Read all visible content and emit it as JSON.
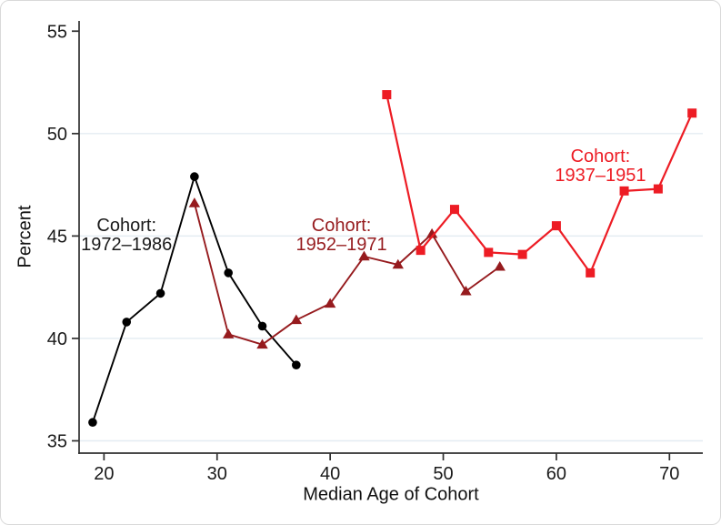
{
  "colors": {
    "axis": "#303030",
    "gridline": "#e4ecf2",
    "tick_label": "#1a1a1a",
    "border": "#d9d9d9",
    "background": "#ffffff",
    "series_black": "#000000",
    "series_darkred": "#961b1e",
    "series_red": "#ed1c24"
  },
  "chart_data": {
    "type": "line",
    "title": "",
    "xlabel": "Median Age of Cohort",
    "ylabel": "Percent",
    "xlim": [
      17.8,
      72.95
    ],
    "ylim": [
      34.4,
      55.5
    ],
    "x_ticks": [
      "20",
      "30",
      "40",
      "50",
      "60",
      "70"
    ],
    "x_tick_values": [
      20,
      30,
      40,
      50,
      60,
      70
    ],
    "y_ticks": [
      "35",
      "40",
      "45",
      "50",
      "55"
    ],
    "y_tick_values": [
      35,
      40,
      45,
      50,
      55
    ],
    "gridlines_y": [
      35,
      40,
      45,
      50
    ],
    "grid": "horizontal-only",
    "legend_position": "in-plot-annotations",
    "series": [
      {
        "name": "Cohort: 1972–1986",
        "color": "#000000",
        "marker": "circle",
        "x": [
          19,
          22,
          25,
          28,
          31,
          34,
          37
        ],
        "y": [
          35.9,
          40.8,
          42.2,
          47.9,
          43.2,
          40.6,
          38.7
        ]
      },
      {
        "name": "Cohort: 1952–1971",
        "color": "#961b1e",
        "marker": "triangle",
        "x": [
          28,
          31,
          34,
          37,
          40,
          43,
          46,
          49,
          52,
          55
        ],
        "y": [
          46.6,
          40.2,
          39.7,
          40.9,
          41.7,
          44.0,
          43.6,
          45.1,
          42.3,
          43.5
        ]
      },
      {
        "name": "Cohort: 1937–1951",
        "color": "#ed1c24",
        "marker": "square",
        "x": [
          45,
          48,
          51,
          54,
          57,
          60,
          63,
          66,
          69,
          72
        ],
        "y": [
          51.9,
          44.3,
          46.3,
          44.2,
          44.1,
          45.5,
          43.2,
          47.2,
          47.3,
          51.0
        ]
      }
    ],
    "annotations": [
      {
        "lines": [
          "Cohort:",
          "1972–1986"
        ],
        "color": "#1a1a1a",
        "x": 22.0,
        "y": 45.0
      },
      {
        "lines": [
          "Cohort:",
          "1952–1971"
        ],
        "color": "#961b1e",
        "x": 41.0,
        "y": 45.0
      },
      {
        "lines": [
          "Cohort:",
          "1937–1951"
        ],
        "color": "#ed1c24",
        "x": 63.9,
        "y": 48.4
      }
    ]
  }
}
